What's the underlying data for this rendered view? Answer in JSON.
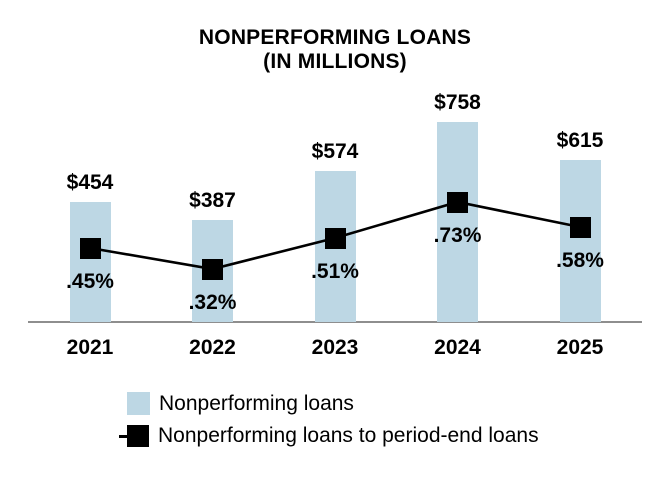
{
  "chart_data": {
    "type": "combo-bar-line",
    "title": "NONPERFORMING LOANS",
    "subtitle": "(IN MILLIONS)",
    "categories": [
      "2021",
      "2022",
      "2023",
      "2024",
      "2025"
    ],
    "series": [
      {
        "name": "Nonperforming loans",
        "type": "bar",
        "unit": "USD millions",
        "values": [
          454,
          387,
          574,
          758,
          615
        ],
        "labels": [
          "$454",
          "$387",
          "$574",
          "$758",
          "$615"
        ],
        "color": "#BDD7E4"
      },
      {
        "name": "Nonperforming loans to period-end loans",
        "type": "line",
        "unit": "percent",
        "marker": "square",
        "values": [
          0.45,
          0.32,
          0.51,
          0.73,
          0.58
        ],
        "labels": [
          ".45%",
          ".32%",
          ".51%",
          ".73%",
          ".58%"
        ],
        "color": "#000000"
      }
    ],
    "axis": {
      "baseline_color": "#8E8E8E",
      "gridlines": false,
      "y_axis_visible": false,
      "x_labels_bold": true
    },
    "legend_position": "bottom-left"
  }
}
